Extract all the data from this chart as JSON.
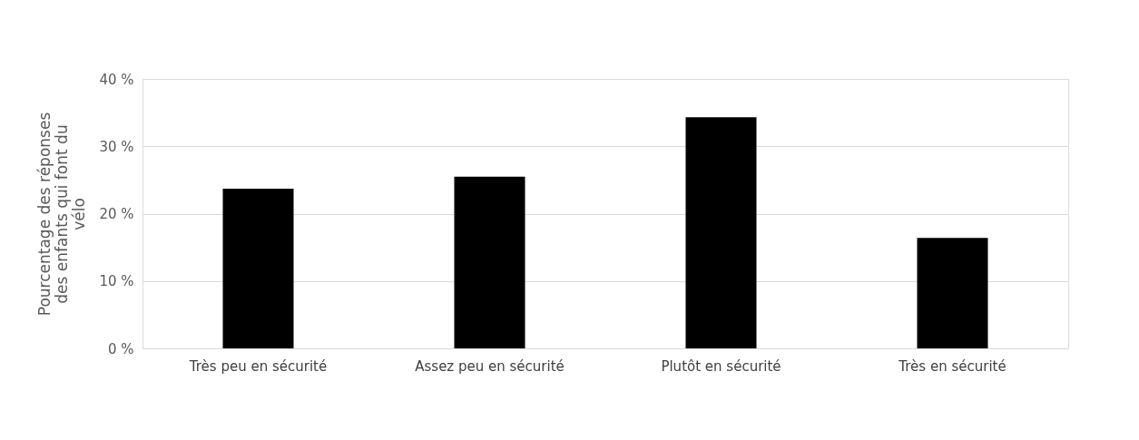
{
  "chart_data": {
    "type": "bar",
    "ylabel": "Pourcentage des réponses des enfants qui font du vélo",
    "categories": [
      "Très peu en sécurité",
      "Assez peu en sécurité",
      "Plutôt en sécurité",
      "Très en sécurité"
    ],
    "values": [
      23.7,
      25.5,
      34.3,
      16.4
    ],
    "color": "#000000",
    "ylim": [
      0,
      40
    ],
    "yticks": [
      {
        "value": 0,
        "label": "0 %"
      },
      {
        "value": 10,
        "label": "10 %"
      },
      {
        "value": 20,
        "label": "20 %"
      },
      {
        "value": 30,
        "label": "30 %"
      },
      {
        "value": 40,
        "label": "40 %"
      }
    ],
    "grid": "y"
  }
}
